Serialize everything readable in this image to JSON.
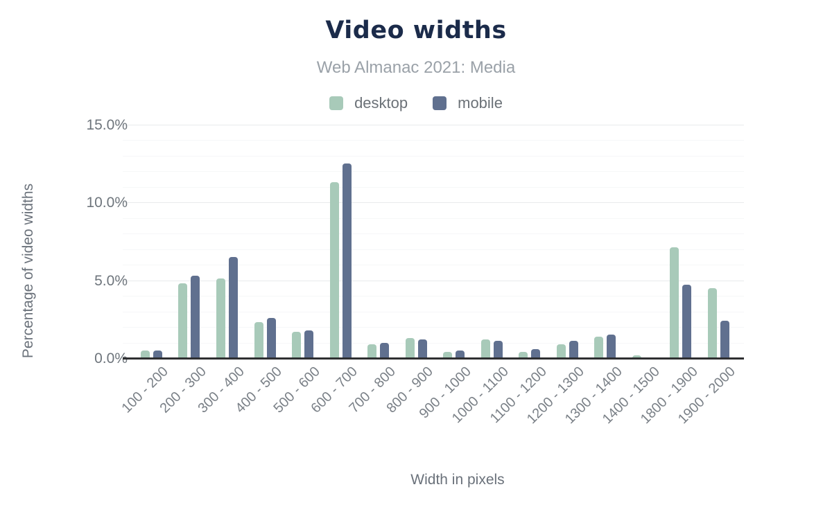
{
  "header": {
    "title": "Video widths",
    "subtitle": "Web Almanac 2021: Media"
  },
  "legend": [
    {
      "label": "desktop",
      "color": "#a8cab9"
    },
    {
      "label": "mobile",
      "color": "#60708f"
    }
  ],
  "axes": {
    "y_title": "Percentage of video widths",
    "x_title": "Width in pixels"
  },
  "chart_data": {
    "type": "bar",
    "title": "Video widths",
    "subtitle": "Web Almanac 2021: Media",
    "xlabel": "Width in pixels",
    "ylabel": "Percentage of video widths",
    "ylim": [
      0,
      15
    ],
    "grid": true,
    "legend_position": "top",
    "y_tick_values": [
      0,
      5,
      10,
      15
    ],
    "y_tick_labels": [
      "0.0%",
      "5.0%",
      "10.0%",
      "15.0%"
    ],
    "y_minor_step": 1,
    "categories": [
      "100 - 200",
      "200 - 300",
      "300 - 400",
      "400 - 500",
      "500 - 600",
      "600 - 700",
      "700 - 800",
      "800 - 900",
      "900 - 1000",
      "1000 - 1100",
      "1100 - 1200",
      "1200 - 1300",
      "1300 - 1400",
      "1400 - 1500",
      "1800 - 1900",
      "1900 - 2000"
    ],
    "series": [
      {
        "name": "desktop",
        "color": "#a8cab9",
        "values": [
          0.5,
          4.8,
          5.1,
          2.3,
          1.7,
          11.3,
          0.9,
          1.3,
          0.4,
          1.2,
          0.4,
          0.9,
          1.4,
          0.2,
          7.1,
          4.5
        ]
      },
      {
        "name": "mobile",
        "color": "#60708f",
        "values": [
          0.5,
          5.3,
          6.5,
          2.6,
          1.8,
          12.5,
          1.0,
          1.2,
          0.5,
          1.1,
          0.6,
          1.1,
          1.5,
          0.0,
          4.7,
          2.4
        ]
      }
    ]
  }
}
